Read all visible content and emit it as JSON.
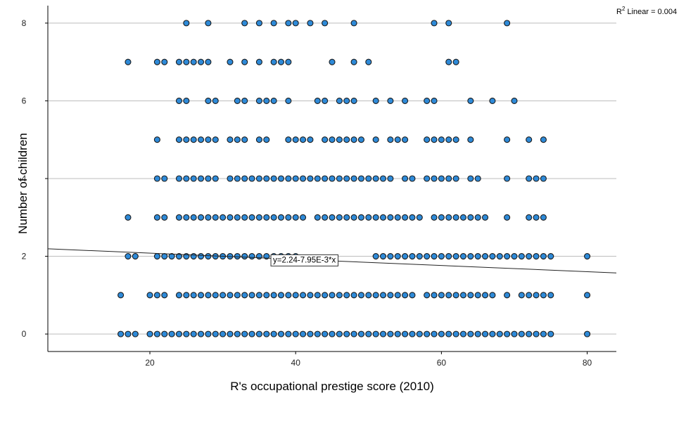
{
  "chart_data": {
    "type": "scatter",
    "xlabel": "R's occupational prestige score (2010)",
    "ylabel": "Number of children",
    "xlim": [
      6,
      84
    ],
    "ylim": [
      -0.45,
      8.45
    ],
    "x_ticks": [
      "20",
      "40",
      "60",
      "80"
    ],
    "y_ticks": [
      "0",
      "2",
      "4",
      "6",
      "8"
    ],
    "grid": "horizontal",
    "marker_color": "#2e8ad8",
    "marker_edge": "#1a1a1a",
    "fit_line": {
      "intercept": 2.24,
      "slope": -0.00795
    },
    "fit_equation": "y=2.24-7.95E-3*x",
    "r2_label": "R",
    "r2_sup": "2",
    "r2_text": " Linear = 0.004",
    "rows": [
      {
        "y": 8,
        "x": [
          25,
          28,
          33,
          35,
          37,
          39,
          40,
          42,
          44,
          48,
          59,
          61,
          69
        ]
      },
      {
        "y": 7,
        "x": [
          17,
          21,
          22,
          24,
          25,
          26,
          27,
          28,
          31,
          33,
          35,
          37,
          38,
          39,
          45,
          48,
          50,
          61,
          62
        ]
      },
      {
        "y": 6,
        "x": [
          24,
          25,
          28,
          29,
          32,
          33,
          35,
          36,
          37,
          39,
          43,
          44,
          46,
          47,
          48,
          51,
          53,
          55,
          58,
          59,
          64,
          67,
          70
        ]
      },
      {
        "y": 5,
        "x": [
          21,
          24,
          25,
          26,
          27,
          28,
          29,
          31,
          32,
          33,
          35,
          36,
          39,
          40,
          41,
          42,
          44,
          45,
          46,
          47,
          48,
          49,
          51,
          53,
          54,
          55,
          58,
          59,
          60,
          61,
          62,
          64,
          69,
          72,
          74
        ]
      },
      {
        "y": 4,
        "x": [
          21,
          22,
          24,
          25,
          26,
          27,
          28,
          29,
          31,
          32,
          33,
          34,
          35,
          36,
          37,
          38,
          39,
          40,
          41,
          42,
          43,
          44,
          45,
          46,
          47,
          48,
          49,
          50,
          51,
          52,
          53,
          55,
          56,
          58,
          59,
          60,
          61,
          62,
          64,
          65,
          69,
          72,
          73,
          74
        ]
      },
      {
        "y": 3,
        "x": [
          17,
          21,
          22,
          24,
          25,
          26,
          27,
          28,
          29,
          30,
          31,
          32,
          33,
          34,
          35,
          36,
          37,
          38,
          39,
          40,
          41,
          43,
          44,
          45,
          46,
          47,
          48,
          49,
          50,
          51,
          52,
          53,
          54,
          55,
          56,
          57,
          59,
          60,
          61,
          62,
          63,
          64,
          65,
          66,
          69,
          72,
          73,
          74
        ]
      },
      {
        "y": 2,
        "x": [
          17,
          18,
          21,
          22,
          23,
          24,
          25,
          26,
          27,
          28,
          29,
          30,
          31,
          32,
          33,
          34,
          35,
          36,
          37,
          38,
          39,
          40,
          51,
          52,
          53,
          54,
          55,
          56,
          57,
          58,
          59,
          60,
          61,
          62,
          63,
          64,
          65,
          66,
          67,
          68,
          69,
          70,
          71,
          72,
          73,
          74,
          75,
          80
        ]
      },
      {
        "y": 1,
        "x": [
          16,
          20,
          21,
          22,
          24,
          25,
          26,
          27,
          28,
          29,
          30,
          31,
          32,
          33,
          34,
          35,
          36,
          37,
          38,
          39,
          40,
          41,
          42,
          43,
          44,
          45,
          46,
          47,
          48,
          49,
          50,
          51,
          52,
          53,
          54,
          55,
          56,
          58,
          59,
          60,
          61,
          62,
          63,
          64,
          65,
          66,
          67,
          69,
          71,
          72,
          73,
          74,
          75,
          80
        ]
      },
      {
        "y": 0,
        "x": [
          16,
          17,
          18,
          20,
          21,
          22,
          23,
          24,
          25,
          26,
          27,
          28,
          29,
          30,
          31,
          32,
          33,
          34,
          35,
          36,
          37,
          38,
          39,
          40,
          41,
          42,
          43,
          44,
          45,
          46,
          47,
          48,
          49,
          50,
          51,
          52,
          53,
          54,
          55,
          56,
          57,
          58,
          59,
          60,
          61,
          62,
          63,
          64,
          65,
          66,
          67,
          68,
          69,
          70,
          71,
          72,
          73,
          74,
          75,
          80
        ]
      }
    ]
  }
}
